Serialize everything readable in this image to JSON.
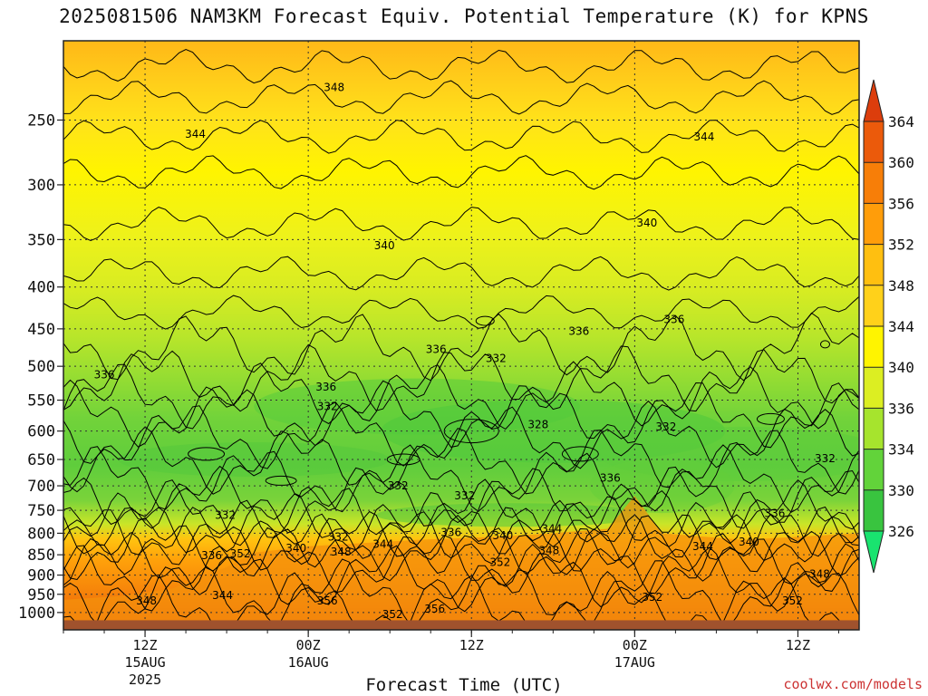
{
  "title": "2025081506 NAM3KM Forecast Equiv. Potential Temperature (K) for KPNS",
  "credit": "coolwx.com/models",
  "chart_data": {
    "type": "heatmap",
    "title": "2025081506 NAM3KM Forecast Equiv. Potential Temperature (K) for KPNS",
    "xlabel": "Forecast Time (UTC)",
    "ylabel": "",
    "y_scale": "log-pressure (hPa), inverted",
    "ylim": [
      1050,
      200
    ],
    "xlim_hours_utc": [
      "2025-08-15 06Z",
      "2025-08-17 12Z + ~6h"
    ],
    "y_ticks": [
      250,
      300,
      350,
      400,
      450,
      500,
      550,
      600,
      650,
      700,
      750,
      800,
      850,
      900,
      950,
      1000
    ],
    "x_ticks": [
      {
        "label": "12Z",
        "sub1": "15AUG",
        "sub2": "2025",
        "hour": 6
      },
      {
        "label": "00Z",
        "sub1": "16AUG",
        "sub2": "",
        "hour": 18
      },
      {
        "label": "12Z",
        "sub1": "",
        "sub2": "",
        "hour": 30
      },
      {
        "label": "00Z",
        "sub1": "17AUG",
        "sub2": "",
        "hour": 42
      },
      {
        "label": "12Z",
        "sub1": "",
        "sub2": "",
        "hour": 54
      }
    ],
    "grid": true,
    "colorbar": {
      "orientation": "vertical",
      "placement": "right",
      "levels": [
        326,
        330,
        334,
        336,
        340,
        344,
        348,
        352,
        356,
        360,
        364
      ],
      "colors": [
        "#19e36f",
        "#39c43f",
        "#62d33a",
        "#a6e42d",
        "#dcee22",
        "#fff400",
        "#ffd11a",
        "#ffbf10",
        "#ff9d0a",
        "#f77e08",
        "#eb5a0b",
        "#dc3d0c"
      ]
    },
    "ground_color": "#a0522d",
    "contour_labels": [
      {
        "v": "348",
        "h": 19.9,
        "p": 228
      },
      {
        "v": "344",
        "h": 9.7,
        "p": 260
      },
      {
        "v": "344",
        "h": 47.1,
        "p": 262
      },
      {
        "v": "340",
        "h": 23.6,
        "p": 356
      },
      {
        "v": "340",
        "h": 42.9,
        "p": 334
      },
      {
        "v": "336",
        "h": 3.0,
        "p": 512
      },
      {
        "v": "336",
        "h": 19.3,
        "p": 530
      },
      {
        "v": "336",
        "h": 27.4,
        "p": 477
      },
      {
        "v": "336",
        "h": 37.9,
        "p": 453
      },
      {
        "v": "336",
        "h": 44.9,
        "p": 438
      },
      {
        "v": "336",
        "h": 40.2,
        "p": 685
      },
      {
        "v": "336",
        "h": 52.3,
        "p": 757
      },
      {
        "v": "336",
        "h": 10.9,
        "p": 852
      },
      {
        "v": "332",
        "h": 31.8,
        "p": 489
      },
      {
        "v": "332",
        "h": 19.4,
        "p": 560
      },
      {
        "v": "332",
        "h": 44.3,
        "p": 593
      },
      {
        "v": "332",
        "h": 56.0,
        "p": 648
      },
      {
        "v": "332",
        "h": 24.6,
        "p": 700
      },
      {
        "v": "332",
        "h": 29.5,
        "p": 720
      },
      {
        "v": "332",
        "h": 11.9,
        "p": 760
      },
      {
        "v": "328",
        "h": 34.9,
        "p": 589
      },
      {
        "v": "332",
        "h": 20.2,
        "p": 808
      },
      {
        "v": "336",
        "h": 28.5,
        "p": 798
      },
      {
        "v": "340",
        "h": 32.3,
        "p": 805
      },
      {
        "v": "344",
        "h": 35.9,
        "p": 790
      },
      {
        "v": "348",
        "h": 35.7,
        "p": 840
      },
      {
        "v": "348",
        "h": 20.4,
        "p": 843
      },
      {
        "v": "352",
        "h": 13.0,
        "p": 848
      },
      {
        "v": "340",
        "h": 17.1,
        "p": 835
      },
      {
        "v": "344",
        "h": 23.5,
        "p": 825
      },
      {
        "v": "352",
        "h": 32.1,
        "p": 868
      },
      {
        "v": "344",
        "h": 47.0,
        "p": 830
      },
      {
        "v": "340",
        "h": 50.4,
        "p": 820
      },
      {
        "v": "348",
        "h": 55.6,
        "p": 897
      },
      {
        "v": "348",
        "h": 6.1,
        "p": 968
      },
      {
        "v": "344",
        "h": 11.7,
        "p": 953
      },
      {
        "v": "356",
        "h": 19.4,
        "p": 968
      },
      {
        "v": "352",
        "h": 24.2,
        "p": 1005
      },
      {
        "v": "356",
        "h": 27.3,
        "p": 990
      },
      {
        "v": "352",
        "h": 43.3,
        "p": 958
      },
      {
        "v": "352",
        "h": 53.6,
        "p": 968
      }
    ]
  }
}
